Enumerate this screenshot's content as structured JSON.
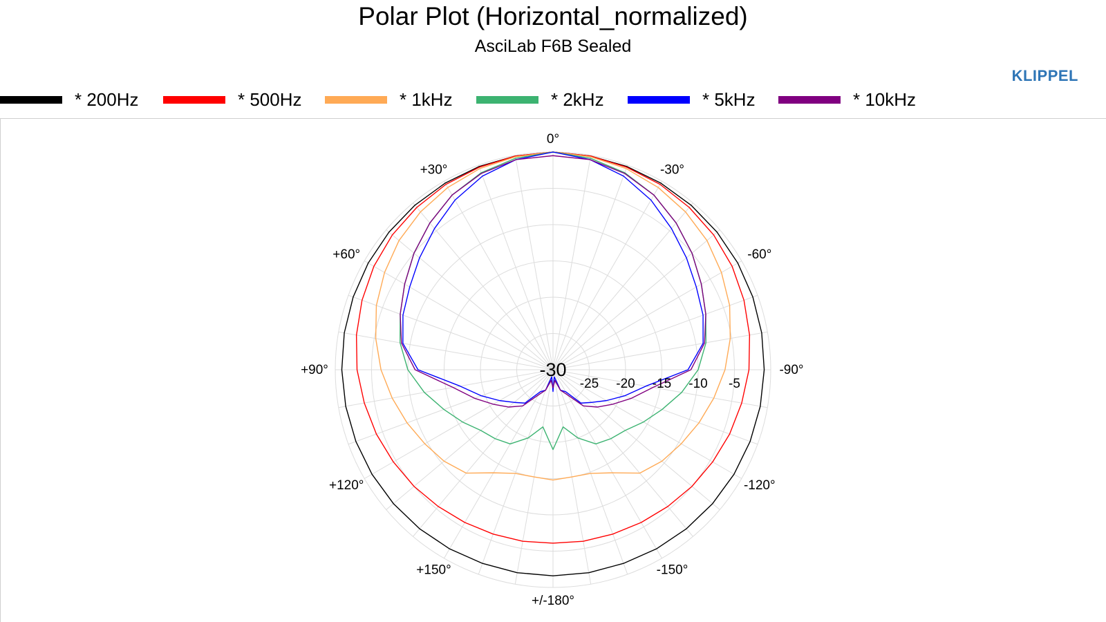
{
  "title": "Polar Plot (Horizontal_normalized)",
  "subtitle": "AsciLab F6B Sealed",
  "brand": "KLIPPEL",
  "chart_data": {
    "type": "polar",
    "radial_axis": {
      "min": -30,
      "max": 0,
      "center_label": "-30",
      "tick_values": [
        -25,
        -20,
        -15,
        -10,
        -5
      ],
      "tick_labels": [
        "-25",
        "-20",
        "-15",
        "-10",
        "-5"
      ]
    },
    "angular_axis": {
      "labels": [
        {
          "angle": 0,
          "text": "0°"
        },
        {
          "angle": 30,
          "text": "-30°"
        },
        {
          "angle": 60,
          "text": "-60°"
        },
        {
          "angle": 90,
          "text": "-90°"
        },
        {
          "angle": 120,
          "text": "-120°"
        },
        {
          "angle": 150,
          "text": "-150°"
        },
        {
          "angle": 180,
          "text": "+/-180°"
        },
        {
          "angle": 210,
          "text": "+150°"
        },
        {
          "angle": 240,
          "text": "+120°"
        },
        {
          "angle": 270,
          "text": "+90°"
        },
        {
          "angle": 300,
          "text": "+60°"
        },
        {
          "angle": 330,
          "text": "+30°"
        }
      ]
    },
    "grid": true,
    "legend_position": "top",
    "series": [
      {
        "name": "* 200Hz",
        "color": "#000000",
        "points": [
          [
            0,
            0
          ],
          [
            10,
            -0.1
          ],
          [
            20,
            -0.2
          ],
          [
            30,
            -0.3
          ],
          [
            40,
            -0.4
          ],
          [
            50,
            -0.5
          ],
          [
            60,
            -0.6
          ],
          [
            70,
            -0.7
          ],
          [
            80,
            -0.8
          ],
          [
            90,
            -0.9
          ],
          [
            100,
            -1.0
          ],
          [
            110,
            -1.1
          ],
          [
            120,
            -1.2
          ],
          [
            130,
            -1.3
          ],
          [
            140,
            -1.4
          ],
          [
            150,
            -1.5
          ],
          [
            160,
            -1.6
          ],
          [
            170,
            -1.6
          ],
          [
            180,
            -1.6
          ],
          [
            190,
            -1.6
          ],
          [
            200,
            -1.6
          ],
          [
            210,
            -1.5
          ],
          [
            220,
            -1.4
          ],
          [
            230,
            -1.3
          ],
          [
            240,
            -1.2
          ],
          [
            250,
            -1.1
          ],
          [
            260,
            -1.0
          ],
          [
            270,
            -0.9
          ],
          [
            280,
            -0.8
          ],
          [
            290,
            -0.7
          ],
          [
            300,
            -0.6
          ],
          [
            310,
            -0.5
          ],
          [
            320,
            -0.4
          ],
          [
            330,
            -0.3
          ],
          [
            340,
            -0.2
          ],
          [
            350,
            -0.1
          ]
        ]
      },
      {
        "name": "* 500Hz",
        "color": "#ff0000",
        "points": [
          [
            0,
            0
          ],
          [
            10,
            -0.1
          ],
          [
            20,
            -0.3
          ],
          [
            30,
            -0.5
          ],
          [
            40,
            -0.8
          ],
          [
            50,
            -1.1
          ],
          [
            60,
            -1.5
          ],
          [
            70,
            -2.0
          ],
          [
            80,
            -2.5
          ],
          [
            90,
            -3.0
          ],
          [
            100,
            -3.6
          ],
          [
            110,
            -4.1
          ],
          [
            120,
            -4.6
          ],
          [
            130,
            -5.0
          ],
          [
            140,
            -5.4
          ],
          [
            150,
            -5.7
          ],
          [
            160,
            -5.9
          ],
          [
            170,
            -6.0
          ],
          [
            180,
            -6.1
          ],
          [
            190,
            -6.0
          ],
          [
            200,
            -5.9
          ],
          [
            210,
            -5.7
          ],
          [
            220,
            -5.4
          ],
          [
            230,
            -5.0
          ],
          [
            240,
            -4.6
          ],
          [
            250,
            -4.1
          ],
          [
            260,
            -3.6
          ],
          [
            270,
            -3.0
          ],
          [
            280,
            -2.5
          ],
          [
            290,
            -2.0
          ],
          [
            300,
            -1.5
          ],
          [
            310,
            -1.1
          ],
          [
            320,
            -0.8
          ],
          [
            330,
            -0.5
          ],
          [
            340,
            -0.3
          ],
          [
            350,
            -0.1
          ]
        ]
      },
      {
        "name": "* 1kHz",
        "color": "#ffaa55",
        "points": [
          [
            0,
            0
          ],
          [
            10,
            -0.2
          ],
          [
            20,
            -0.5
          ],
          [
            30,
            -1.0
          ],
          [
            40,
            -1.6
          ],
          [
            50,
            -2.3
          ],
          [
            60,
            -3.2
          ],
          [
            70,
            -4.1
          ],
          [
            80,
            -5.2
          ],
          [
            90,
            -6.3
          ],
          [
            100,
            -7.5
          ],
          [
            110,
            -8.6
          ],
          [
            120,
            -9.6
          ],
          [
            130,
            -10.4
          ],
          [
            140,
            -11.4
          ],
          [
            150,
            -13.6
          ],
          [
            160,
            -14.8
          ],
          [
            170,
            -15.0
          ],
          [
            180,
            -14.8
          ],
          [
            190,
            -15.0
          ],
          [
            200,
            -14.8
          ],
          [
            210,
            -13.6
          ],
          [
            220,
            -11.4
          ],
          [
            230,
            -10.4
          ],
          [
            240,
            -9.6
          ],
          [
            250,
            -8.6
          ],
          [
            260,
            -7.5
          ],
          [
            270,
            -6.3
          ],
          [
            280,
            -5.2
          ],
          [
            290,
            -4.1
          ],
          [
            300,
            -3.2
          ],
          [
            310,
            -2.3
          ],
          [
            320,
            -1.6
          ],
          [
            330,
            -1.0
          ],
          [
            340,
            -0.5
          ],
          [
            350,
            -0.2
          ]
        ]
      },
      {
        "name": "* 2kHz",
        "color": "#3cb371",
        "points": [
          [
            0,
            0
          ],
          [
            10,
            -0.4
          ],
          [
            20,
            -1.1
          ],
          [
            30,
            -2.2
          ],
          [
            40,
            -3.6
          ],
          [
            50,
            -5.0
          ],
          [
            60,
            -6.4
          ],
          [
            70,
            -7.6
          ],
          [
            80,
            -8.6
          ],
          [
            90,
            -10.0
          ],
          [
            100,
            -12.0
          ],
          [
            110,
            -14.0
          ],
          [
            120,
            -15.6
          ],
          [
            130,
            -17.0
          ],
          [
            140,
            -17.6
          ],
          [
            150,
            -18.2
          ],
          [
            160,
            -20.0
          ],
          [
            170,
            -22.0
          ],
          [
            180,
            -19.0
          ],
          [
            190,
            -22.0
          ],
          [
            200,
            -20.0
          ],
          [
            210,
            -18.2
          ],
          [
            220,
            -17.6
          ],
          [
            230,
            -17.0
          ],
          [
            240,
            -15.6
          ],
          [
            250,
            -14.0
          ],
          [
            260,
            -12.0
          ],
          [
            270,
            -10.0
          ],
          [
            280,
            -8.6
          ],
          [
            290,
            -7.6
          ],
          [
            300,
            -6.4
          ],
          [
            310,
            -5.0
          ],
          [
            320,
            -3.6
          ],
          [
            330,
            -2.2
          ],
          [
            340,
            -1.1
          ],
          [
            350,
            -0.4
          ]
        ]
      },
      {
        "name": "* 5kHz",
        "color": "#0000ff",
        "points": [
          [
            0,
            0
          ],
          [
            10,
            -0.6
          ],
          [
            20,
            -1.6
          ],
          [
            30,
            -3.0
          ],
          [
            40,
            -4.6
          ],
          [
            50,
            -6.0
          ],
          [
            60,
            -7.2
          ],
          [
            70,
            -8.0
          ],
          [
            80,
            -9.0
          ],
          [
            90,
            -11.4
          ],
          [
            100,
            -17.0
          ],
          [
            110,
            -19.5
          ],
          [
            120,
            -21.5
          ],
          [
            130,
            -23.0
          ],
          [
            140,
            -24.0
          ],
          [
            150,
            -26.5
          ],
          [
            160,
            -27.0
          ],
          [
            170,
            -29.0
          ],
          [
            180,
            -27.0
          ],
          [
            190,
            -29.0
          ],
          [
            200,
            -27.0
          ],
          [
            210,
            -26.5
          ],
          [
            220,
            -24.0
          ],
          [
            230,
            -23.0
          ],
          [
            240,
            -21.5
          ],
          [
            250,
            -19.5
          ],
          [
            260,
            -17.0
          ],
          [
            270,
            -11.4
          ],
          [
            280,
            -9.0
          ],
          [
            290,
            -8.0
          ],
          [
            300,
            -7.2
          ],
          [
            310,
            -6.0
          ],
          [
            320,
            -4.6
          ],
          [
            330,
            -3.0
          ],
          [
            340,
            -1.6
          ],
          [
            350,
            -0.6
          ]
        ]
      },
      {
        "name": "* 10kHz",
        "color": "#800080",
        "points": [
          [
            0,
            -0.5
          ],
          [
            10,
            -0.6
          ],
          [
            20,
            -1.2
          ],
          [
            30,
            -2.2
          ],
          [
            40,
            -3.6
          ],
          [
            50,
            -5.0
          ],
          [
            60,
            -6.4
          ],
          [
            70,
            -7.6
          ],
          [
            80,
            -8.8
          ],
          [
            90,
            -11.0
          ],
          [
            100,
            -16.0
          ],
          [
            110,
            -18.5
          ],
          [
            120,
            -20.5
          ],
          [
            130,
            -22.0
          ],
          [
            140,
            -23.5
          ],
          [
            150,
            -26.0
          ],
          [
            160,
            -27.0
          ],
          [
            170,
            -28.5
          ],
          [
            180,
            -27.5
          ],
          [
            190,
            -28.5
          ],
          [
            200,
            -27.0
          ],
          [
            210,
            -26.0
          ],
          [
            220,
            -23.5
          ],
          [
            230,
            -22.0
          ],
          [
            240,
            -20.5
          ],
          [
            250,
            -18.5
          ],
          [
            260,
            -16.0
          ],
          [
            270,
            -11.0
          ],
          [
            280,
            -8.8
          ],
          [
            290,
            -7.6
          ],
          [
            300,
            -6.4
          ],
          [
            310,
            -5.0
          ],
          [
            320,
            -3.6
          ],
          [
            330,
            -2.2
          ],
          [
            340,
            -1.2
          ],
          [
            350,
            -0.6
          ]
        ]
      }
    ]
  }
}
